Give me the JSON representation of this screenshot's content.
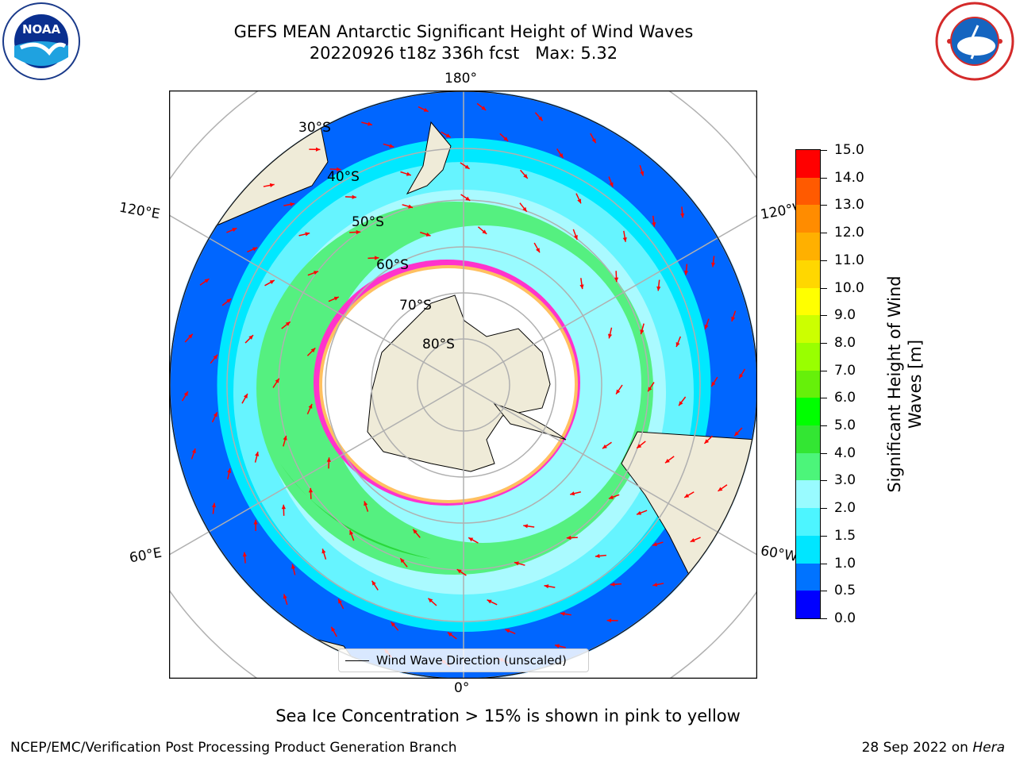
{
  "header": {
    "title": "GEFS MEAN Antarctic Significant Height of Wind Waves",
    "subtitle": "20220926 t18z 336h fcst   Max: 5.32"
  },
  "logos": {
    "left": "noaa-logo",
    "right": "national-weather-service-logo"
  },
  "map": {
    "projection": "south-polar-stereographic",
    "longitude_labels": {
      "top": "180°",
      "bottom": "0°",
      "upper_left": "120°E",
      "upper_right": "120°W",
      "lower_left": "60°E",
      "lower_right": "60°W"
    },
    "latitude_labels": [
      "30°S",
      "40°S",
      "50°S",
      "60°S",
      "70°S",
      "80°S"
    ],
    "legend_label": "Wind Wave Direction (unscaled)",
    "arrow_color": "#ff0000",
    "land_color": "#efebd8",
    "sea_ice_colors": [
      "#ff33cc",
      "#ffb340"
    ]
  },
  "colorbar": {
    "title": "Significant Height of Wind Waves [m]",
    "ticks": [
      "0.0",
      "0.5",
      "1.0",
      "1.5",
      "2.0",
      "3.0",
      "4.0",
      "5.0",
      "6.0",
      "7.0",
      "8.0",
      "9.0",
      "10.0",
      "11.0",
      "12.0",
      "13.0",
      "14.0",
      "15.0"
    ],
    "colors": [
      "#0000ff",
      "#0073ff",
      "#00e6ff",
      "#4df5ff",
      "#99fbff",
      "#4cf57a",
      "#33e633",
      "#00ff00",
      "#66f00a",
      "#99ff00",
      "#ccff00",
      "#ffff00",
      "#ffd700",
      "#ffb000",
      "#ff8c00",
      "#ff5a00",
      "#ff0000"
    ]
  },
  "caption": "Sea Ice Concentration > 15% is shown in pink to yellow",
  "footer": {
    "left": "NCEP/EMC/Verification Post Processing Product Generation Branch",
    "right_date": "28 Sep 2022 on",
    "right_machine": "Hera"
  }
}
